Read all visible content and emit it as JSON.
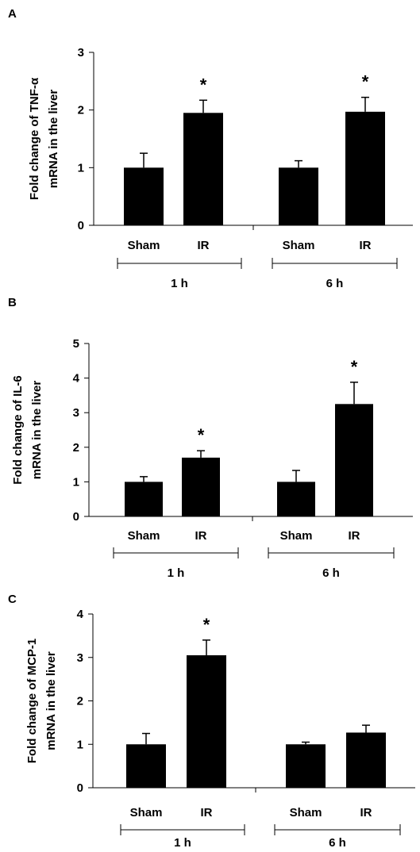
{
  "chart_data": [
    {
      "type": "bar",
      "panel": "A",
      "ylabel": "Fold change of TNF-α mRNA in the liver",
      "ylabel_lines": [
        "Fold change of TNF-α",
        "mRNA in the liver"
      ],
      "ylim": [
        0,
        3
      ],
      "yticks": [
        "0",
        "1",
        "2",
        "3"
      ],
      "categories": [
        "Sham",
        "IR",
        "Sham",
        "IR"
      ],
      "groups": [
        "1 h",
        "6 h"
      ],
      "values": [
        1.0,
        1.95,
        1.0,
        1.97
      ],
      "errors": [
        0.25,
        0.22,
        0.12,
        0.25
      ],
      "significance": [
        "",
        "*",
        "",
        "*"
      ]
    },
    {
      "type": "bar",
      "panel": "B",
      "ylabel": "Fold change of IL-6 mRNA in the liver",
      "ylabel_lines": [
        "Fold change of IL-6",
        "mRNA  in the liver"
      ],
      "ylim": [
        0,
        5
      ],
      "yticks": [
        "0",
        "1",
        "2",
        "3",
        "4",
        "5"
      ],
      "categories": [
        "Sham",
        "IR",
        "Sham",
        "IR"
      ],
      "groups": [
        "1 h",
        "6 h"
      ],
      "values": [
        1.0,
        1.7,
        1.0,
        3.25
      ],
      "errors": [
        0.15,
        0.2,
        0.33,
        0.63
      ],
      "significance": [
        "",
        "*",
        "",
        "*"
      ]
    },
    {
      "type": "bar",
      "panel": "C",
      "ylabel": "Fold change of MCP-1 mRNA in the liver",
      "ylabel_lines": [
        "Fold change of MCP-1",
        "mRNA in the liver"
      ],
      "ylim": [
        0,
        4
      ],
      "yticks": [
        "0",
        "1",
        "2",
        "3",
        "4"
      ],
      "categories": [
        "Sham",
        "IR",
        "Sham",
        "IR"
      ],
      "groups": [
        "1 h",
        "6 h"
      ],
      "values": [
        1.0,
        3.05,
        1.0,
        1.27
      ],
      "errors": [
        0.25,
        0.35,
        0.05,
        0.17
      ],
      "significance": [
        "",
        "*",
        "",
        ""
      ]
    }
  ],
  "colors": {
    "bar": "#000000",
    "axis": "#000000",
    "background": "#ffffff"
  }
}
